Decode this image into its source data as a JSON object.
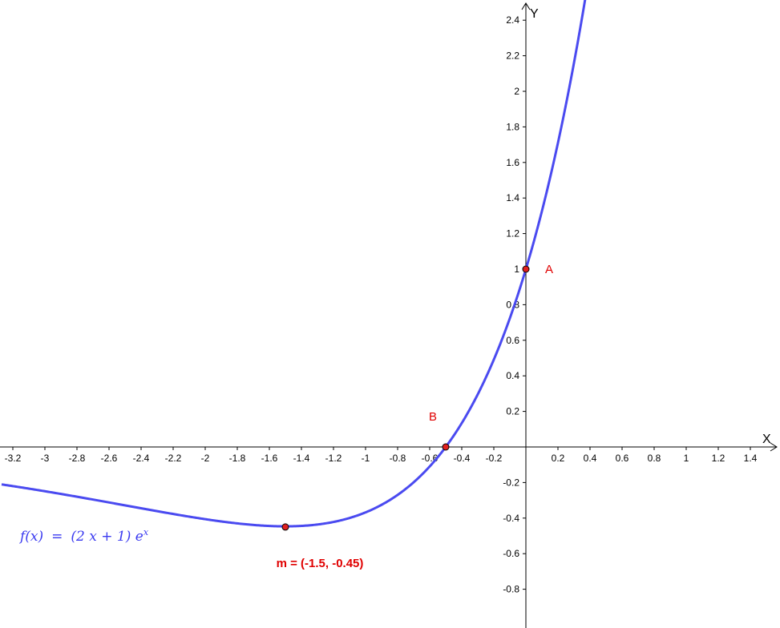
{
  "chart_data": {
    "type": "line",
    "title": "",
    "xlabel": "X",
    "ylabel": "Y",
    "xlim": [
      -3.27,
      1.58
    ],
    "ylim": [
      -0.99,
      2.5
    ],
    "grid": false,
    "x_ticks": [
      -3.2,
      -3,
      -2.8,
      -2.6,
      -2.4,
      -2.2,
      -2,
      -1.8,
      -1.6,
      -1.4,
      -1.2,
      -1,
      -0.8,
      -0.6,
      -0.4,
      -0.2,
      0.2,
      0.4,
      0.6,
      0.8,
      1,
      1.2,
      1.4
    ],
    "y_ticks": [
      2.4,
      2.2,
      2,
      1.8,
      1.6,
      1.4,
      1.2,
      1,
      0.8,
      0.6,
      0.4,
      0.2,
      -0.2,
      -0.4,
      -0.6,
      -0.8
    ],
    "series": [
      {
        "formula": "f(x) = (2 x + 1) e^x",
        "color": "#4a4af0",
        "x_start": -3.27,
        "x_end": 1.58
      }
    ],
    "points": [
      {
        "label": "A",
        "x": 0,
        "y": 1
      },
      {
        "label": "B",
        "x": -0.5,
        "y": 0
      },
      {
        "label": "m = (-1.5, -0.45)",
        "x": -1.5,
        "y": -0.45
      }
    ],
    "function_label": {
      "lhs": "f(x)",
      "eq": "=",
      "rhs": "(2 x + 1) e",
      "exponent": "x"
    }
  },
  "colors": {
    "curve": "#4a4af0",
    "point_fill": "#e02020",
    "point_label": "#e00000",
    "axis": "#000000"
  }
}
